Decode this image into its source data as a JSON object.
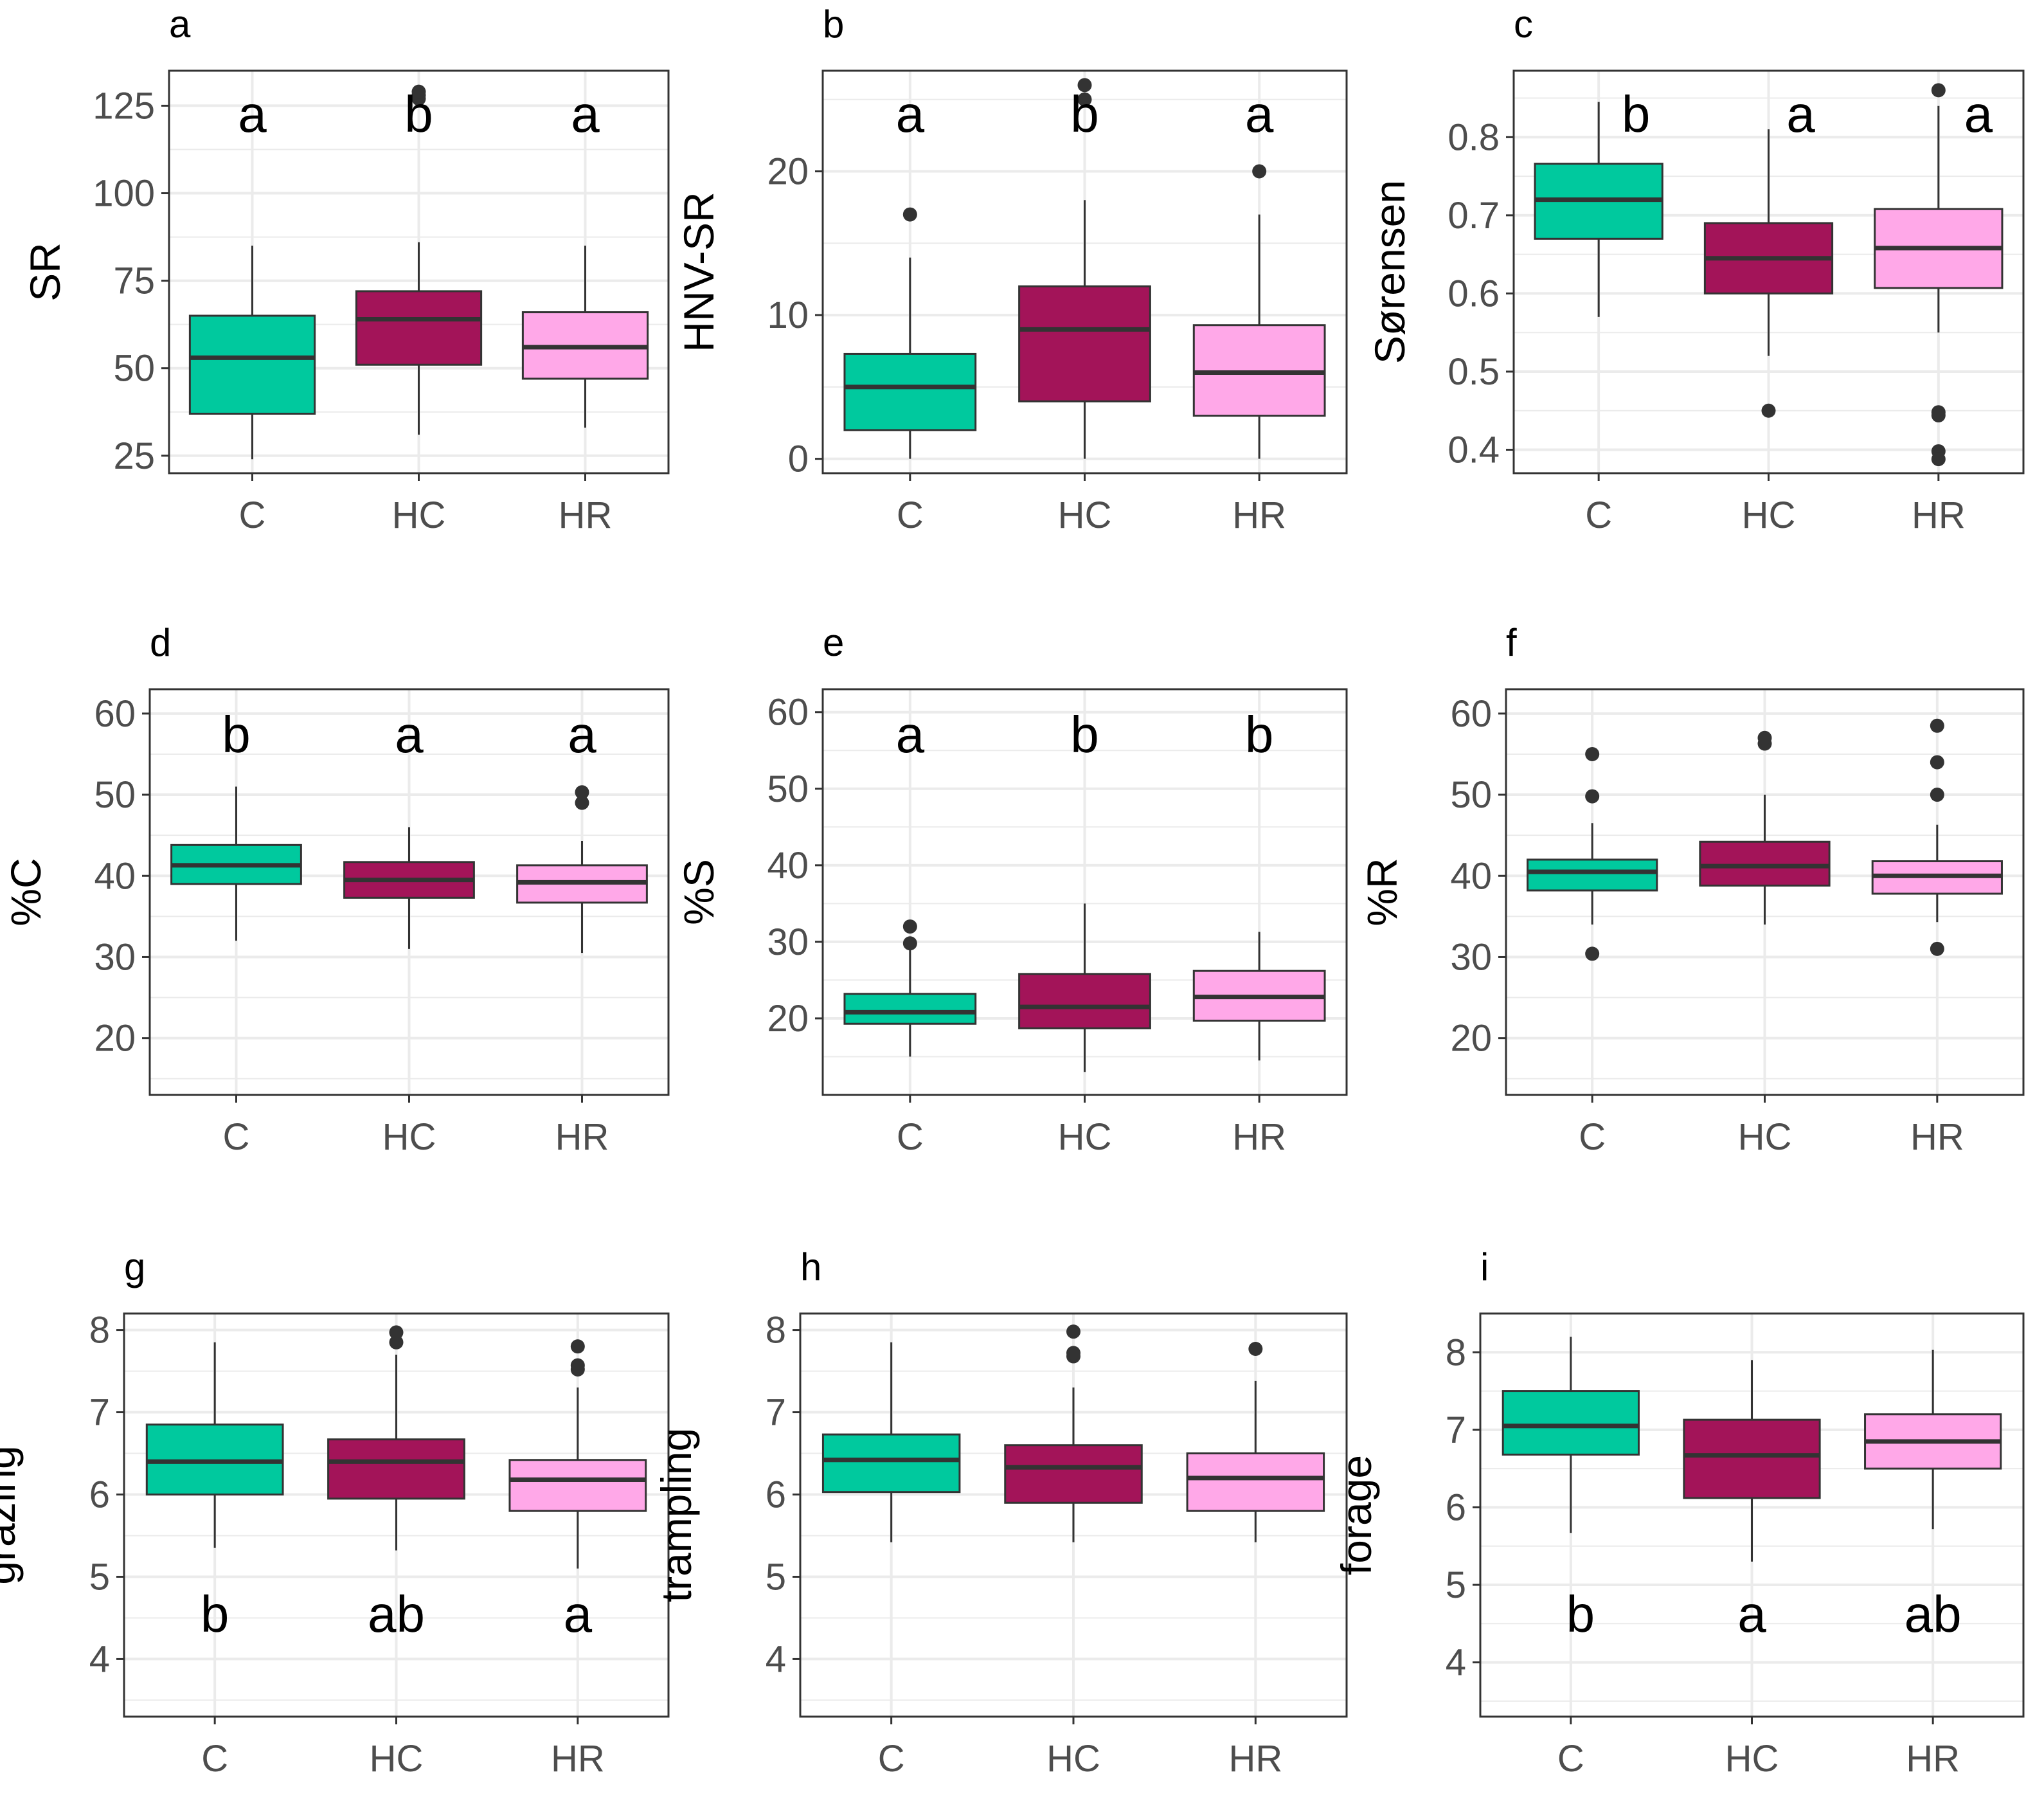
{
  "colors": {
    "C": "#00c99e",
    "HC": "#a31459",
    "HR": "#ffa8e8",
    "median": "#333333",
    "outlier": "#333333",
    "frame": "#333333",
    "grid": "#ebebeb"
  },
  "chart_data": [
    {
      "panel": "a",
      "type": "box",
      "title": "a",
      "ylabel": "SR",
      "ylim": [
        20,
        135
      ],
      "yticks": [
        25,
        50,
        75,
        100,
        125
      ],
      "categories": [
        "C",
        "HC",
        "HR"
      ],
      "boxes": [
        {
          "group": "C",
          "whisker_low": 24,
          "q1": 37,
          "median": 53,
          "q3": 65,
          "whisker_high": 85,
          "outliers": [],
          "letter": "a"
        },
        {
          "group": "HC",
          "whisker_low": 31,
          "q1": 51,
          "median": 64,
          "q3": 72,
          "whisker_high": 86,
          "outliers": [
            127,
            128,
            129
          ],
          "letter": "b"
        },
        {
          "group": "HR",
          "whisker_low": 33,
          "q1": 47,
          "median": 56,
          "q3": 66,
          "whisker_high": 85,
          "outliers": [],
          "letter": "a"
        }
      ]
    },
    {
      "panel": "b",
      "type": "box",
      "title": "b",
      "ylabel": "HNV-SR",
      "ylim": [
        -1,
        27
      ],
      "yticks": [
        0,
        10,
        20
      ],
      "categories": [
        "C",
        "HC",
        "HR"
      ],
      "boxes": [
        {
          "group": "C",
          "whisker_low": 0,
          "q1": 2,
          "median": 5,
          "q3": 7.3,
          "whisker_high": 14,
          "outliers": [
            17
          ],
          "letter": "a"
        },
        {
          "group": "HC",
          "whisker_low": 0,
          "q1": 4,
          "median": 9,
          "q3": 12,
          "whisker_high": 18,
          "outliers": [
            25,
            26
          ],
          "letter": "b"
        },
        {
          "group": "HR",
          "whisker_low": 0,
          "q1": 3,
          "median": 6,
          "q3": 9.3,
          "whisker_high": 17,
          "outliers": [
            20
          ],
          "letter": "a"
        }
      ]
    },
    {
      "panel": "c",
      "type": "box",
      "title": "c",
      "ylabel": "Sørensen",
      "ylim": [
        0.37,
        0.885
      ],
      "yticks": [
        0.4,
        0.5,
        0.6,
        0.7,
        0.8
      ],
      "categories": [
        "C",
        "HC",
        "HR"
      ],
      "boxes": [
        {
          "group": "C",
          "whisker_low": 0.57,
          "q1": 0.67,
          "median": 0.72,
          "q3": 0.766,
          "whisker_high": 0.845,
          "outliers": [],
          "letter": "b"
        },
        {
          "group": "HC",
          "whisker_low": 0.52,
          "q1": 0.6,
          "median": 0.645,
          "q3": 0.69,
          "whisker_high": 0.81,
          "outliers": [
            0.45
          ],
          "letter": "a"
        },
        {
          "group": "HR",
          "whisker_low": 0.55,
          "q1": 0.607,
          "median": 0.658,
          "q3": 0.708,
          "whisker_high": 0.84,
          "outliers": [
            0.86,
            0.448,
            0.444,
            0.398,
            0.388
          ],
          "letter": "a"
        }
      ]
    },
    {
      "panel": "d",
      "type": "box",
      "title": "d",
      "ylabel": "%C",
      "ylim": [
        13,
        63
      ],
      "yticks": [
        20,
        30,
        40,
        50,
        60
      ],
      "categories": [
        "C",
        "HC",
        "HR"
      ],
      "boxes": [
        {
          "group": "C",
          "whisker_low": 32,
          "q1": 39,
          "median": 41.3,
          "q3": 43.8,
          "whisker_high": 51,
          "outliers": [],
          "letter": "b"
        },
        {
          "group": "HC",
          "whisker_low": 31,
          "q1": 37.3,
          "median": 39.5,
          "q3": 41.7,
          "whisker_high": 46,
          "outliers": [],
          "letter": "a"
        },
        {
          "group": "HR",
          "whisker_low": 30.5,
          "q1": 36.7,
          "median": 39.2,
          "q3": 41.3,
          "whisker_high": 44.3,
          "outliers": [
            49,
            50.3
          ],
          "letter": "a"
        }
      ]
    },
    {
      "panel": "e",
      "type": "box",
      "title": "e",
      "ylabel": "%S",
      "ylim": [
        10,
        63
      ],
      "yticks": [
        20,
        30,
        40,
        50,
        60
      ],
      "categories": [
        "C",
        "HC",
        "HR"
      ],
      "boxes": [
        {
          "group": "C",
          "whisker_low": 15,
          "q1": 19.3,
          "median": 20.8,
          "q3": 23.2,
          "whisker_high": 29,
          "outliers": [
            29.8,
            32
          ],
          "letter": "a"
        },
        {
          "group": "HC",
          "whisker_low": 13,
          "q1": 18.7,
          "median": 21.5,
          "q3": 25.8,
          "whisker_high": 35,
          "outliers": [],
          "letter": "b"
        },
        {
          "group": "HR",
          "whisker_low": 14.5,
          "q1": 19.7,
          "median": 22.8,
          "q3": 26.2,
          "whisker_high": 31.3,
          "outliers": [],
          "letter": "b"
        }
      ]
    },
    {
      "panel": "f",
      "type": "box",
      "title": "f",
      "ylabel": "%R",
      "ylim": [
        13,
        63
      ],
      "yticks": [
        20,
        30,
        40,
        50,
        60
      ],
      "categories": [
        "C",
        "HC",
        "HR"
      ],
      "boxes": [
        {
          "group": "C",
          "whisker_low": 34,
          "q1": 38.2,
          "median": 40.5,
          "q3": 42,
          "whisker_high": 46.5,
          "outliers": [
            55,
            49.8,
            30.4
          ],
          "letter": ""
        },
        {
          "group": "HC",
          "whisker_low": 34,
          "q1": 38.8,
          "median": 41.2,
          "q3": 44.2,
          "whisker_high": 50,
          "outliers": [
            56.3,
            57
          ],
          "letter": ""
        },
        {
          "group": "HR",
          "whisker_low": 34.3,
          "q1": 37.8,
          "median": 40,
          "q3": 41.8,
          "whisker_high": 46.3,
          "outliers": [
            58.5,
            54,
            50,
            31
          ],
          "letter": ""
        }
      ]
    },
    {
      "panel": "g",
      "type": "box",
      "title": "g",
      "ylabel": "grazing",
      "ylim": [
        3.3,
        8.2
      ],
      "yticks": [
        4,
        5,
        6,
        7,
        8
      ],
      "categories": [
        "C",
        "HC",
        "HR"
      ],
      "boxes": [
        {
          "group": "C",
          "whisker_low": 5.35,
          "q1": 6.0,
          "median": 6.4,
          "q3": 6.85,
          "whisker_high": 7.85,
          "outliers": [],
          "letter": "b"
        },
        {
          "group": "HC",
          "whisker_low": 5.32,
          "q1": 5.95,
          "median": 6.4,
          "q3": 6.67,
          "whisker_high": 7.7,
          "outliers": [
            7.85,
            7.97
          ],
          "letter": "ab"
        },
        {
          "group": "HR",
          "whisker_low": 5.1,
          "q1": 5.8,
          "median": 6.18,
          "q3": 6.42,
          "whisker_high": 7.3,
          "outliers": [
            7.52,
            7.57,
            7.8
          ],
          "letter": "a"
        }
      ]
    },
    {
      "panel": "h",
      "type": "box",
      "title": "h",
      "ylabel": "trampling",
      "ylim": [
        3.3,
        8.2
      ],
      "yticks": [
        4,
        5,
        6,
        7,
        8
      ],
      "categories": [
        "C",
        "HC",
        "HR"
      ],
      "boxes": [
        {
          "group": "C",
          "whisker_low": 5.42,
          "q1": 6.03,
          "median": 6.42,
          "q3": 6.73,
          "whisker_high": 7.85,
          "outliers": [],
          "letter": ""
        },
        {
          "group": "HC",
          "whisker_low": 5.42,
          "q1": 5.9,
          "median": 6.33,
          "q3": 6.6,
          "whisker_high": 7.3,
          "outliers": [
            7.68,
            7.72,
            7.98
          ],
          "letter": ""
        },
        {
          "group": "HR",
          "whisker_low": 5.42,
          "q1": 5.8,
          "median": 6.2,
          "q3": 6.5,
          "whisker_high": 7.38,
          "outliers": [
            7.77
          ],
          "letter": ""
        }
      ]
    },
    {
      "panel": "i",
      "type": "box",
      "title": "i",
      "ylabel": "forage",
      "ylim": [
        3.3,
        8.5
      ],
      "yticks": [
        4,
        5,
        6,
        7,
        8
      ],
      "categories": [
        "C",
        "HC",
        "HR"
      ],
      "boxes": [
        {
          "group": "C",
          "whisker_low": 5.67,
          "q1": 6.68,
          "median": 7.05,
          "q3": 7.5,
          "whisker_high": 8.2,
          "outliers": [],
          "letter": "b"
        },
        {
          "group": "HC",
          "whisker_low": 5.3,
          "q1": 6.12,
          "median": 6.67,
          "q3": 7.13,
          "whisker_high": 7.9,
          "outliers": [],
          "letter": "a"
        },
        {
          "group": "HR",
          "whisker_low": 5.72,
          "q1": 6.5,
          "median": 6.85,
          "q3": 7.2,
          "whisker_high": 8.03,
          "outliers": [],
          "letter": "ab"
        }
      ]
    }
  ]
}
